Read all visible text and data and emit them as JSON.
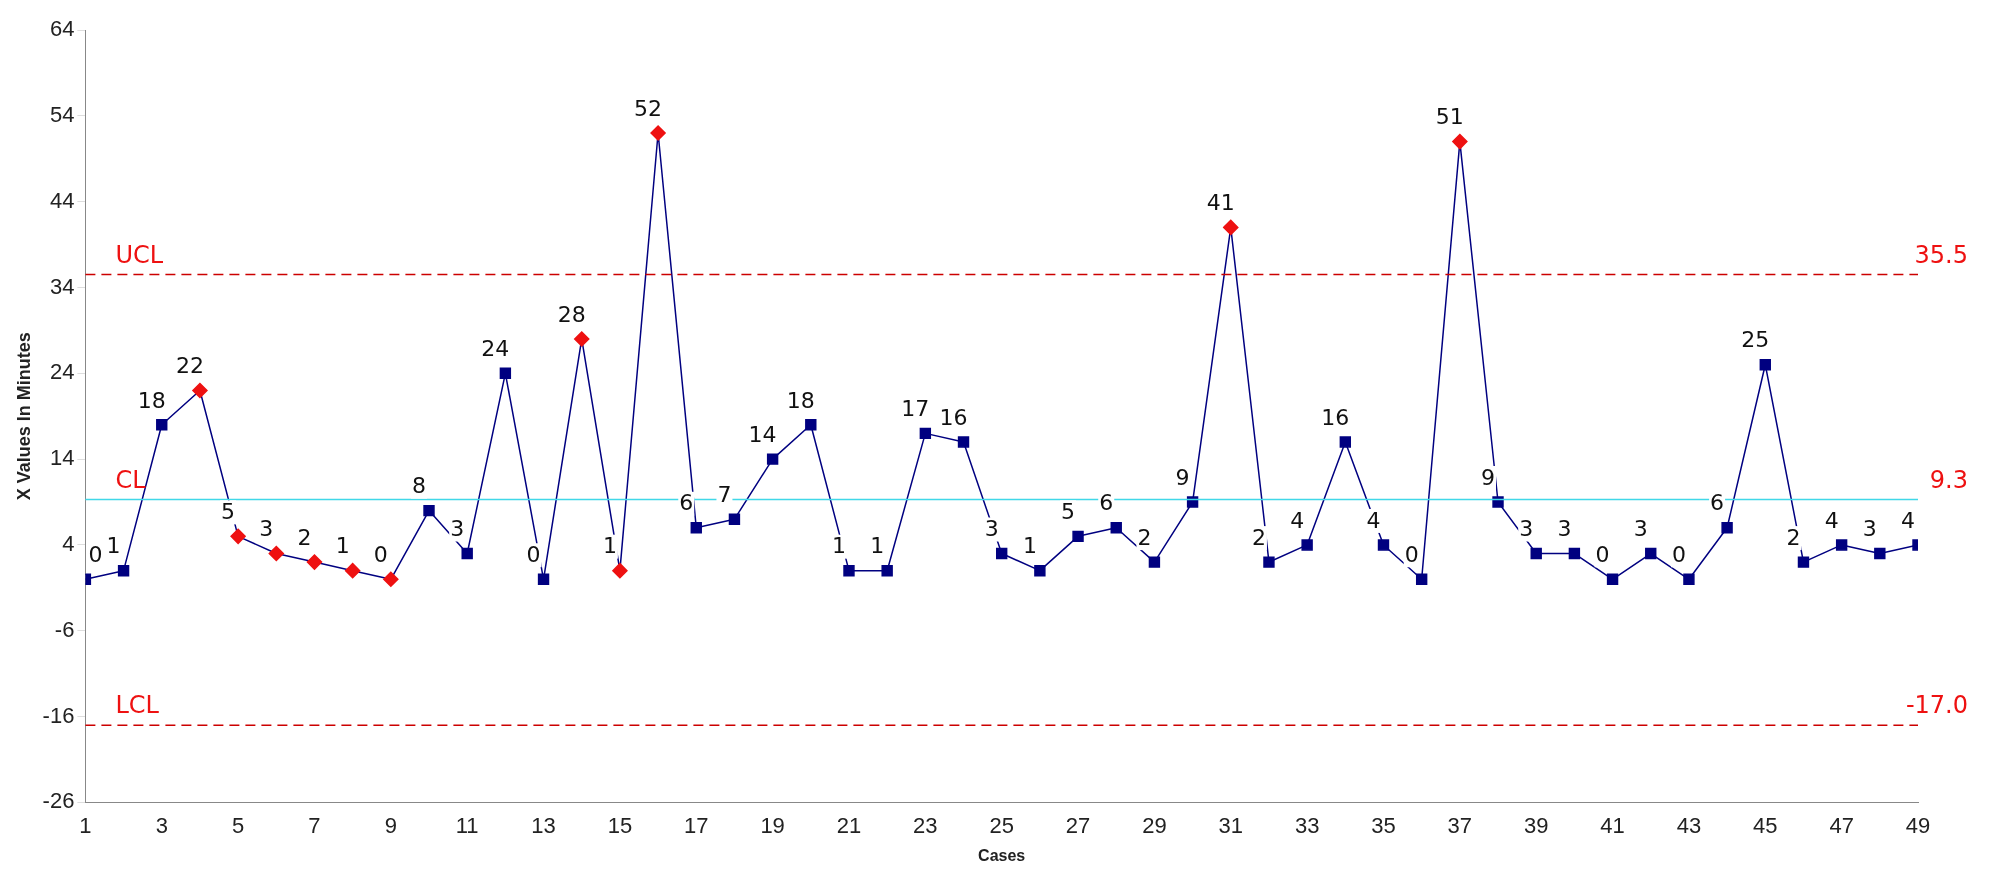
{
  "chart_data": {
    "type": "line",
    "xlabel": "Cases",
    "ylabel": "X Values In Minutes",
    "x": [
      1,
      2,
      3,
      4,
      5,
      6,
      7,
      8,
      9,
      10,
      11,
      12,
      13,
      14,
      15,
      16,
      17,
      18,
      19,
      20,
      21,
      22,
      23,
      24,
      25,
      26,
      27,
      28,
      29,
      30,
      31,
      32,
      33,
      34,
      35,
      36,
      37,
      38,
      39,
      40,
      41,
      42,
      43,
      44,
      45,
      46,
      47,
      48,
      49
    ],
    "series": [
      {
        "color": "#000080",
        "values": [
          0,
          1,
          18,
          22,
          5,
          3,
          2,
          1,
          0,
          8,
          3,
          24,
          0,
          28,
          1,
          52,
          6,
          7,
          14,
          18,
          1,
          1,
          17,
          16,
          3,
          1,
          5,
          6,
          2,
          9,
          41,
          2,
          4,
          16,
          4,
          0,
          51,
          9,
          3,
          3,
          0,
          3,
          0,
          6,
          25,
          2,
          4,
          3,
          4
        ],
        "colors": [
          "#000080",
          "#000080",
          "#000080",
          "#ee1111",
          "#ee1111",
          "#ee1111",
          "#ee1111",
          "#ee1111",
          "#ee1111",
          "#000080",
          "#000080",
          "#000080",
          "#000080",
          "#ee1111",
          "#ee1111",
          "#ee1111",
          "#000080",
          "#000080",
          "#000080",
          "#000080",
          "#000080",
          "#000080",
          "#000080",
          "#000080",
          "#000080",
          "#000080",
          "#000080",
          "#000080",
          "#000080",
          "#000080",
          "#ee1111",
          "#000080",
          "#000080",
          "#000080",
          "#000080",
          "#000080",
          "#ee1111",
          "#000080",
          "#000080",
          "#000080",
          "#000080",
          "#000080",
          "#000080",
          "#000080",
          "#000080",
          "#000080",
          "#000080",
          "#000080",
          "#000080"
        ]
      }
    ],
    "xlim": [
      1,
      49
    ],
    "xticks": [
      1,
      3,
      5,
      7,
      9,
      11,
      13,
      15,
      17,
      19,
      21,
      23,
      25,
      27,
      29,
      31,
      33,
      35,
      37,
      39,
      41,
      43,
      45,
      47,
      49
    ],
    "ylim": [
      -26,
      64
    ],
    "yticks": [
      -26,
      -16,
      -6,
      4,
      14,
      24,
      34,
      44,
      54,
      64
    ],
    "ref_lines": [
      {
        "axis": "y",
        "value": 35.5,
        "label": "UCL",
        "color": "#cc0000",
        "line_style": "dashed"
      },
      {
        "axis": "y",
        "value": 9.3,
        "label": "CL",
        "color": "#40d8e8",
        "line_style": "solid"
      },
      {
        "axis": "y",
        "value": -17.0,
        "label": "LCL",
        "color": "#cc0000",
        "line_style": "dashed"
      }
    ],
    "annotations": [
      "35.5",
      "9.3",
      "-17.0"
    ],
    "data_labels": true,
    "marker": "square",
    "line_style": "solid",
    "grid": false,
    "legend": false
  }
}
